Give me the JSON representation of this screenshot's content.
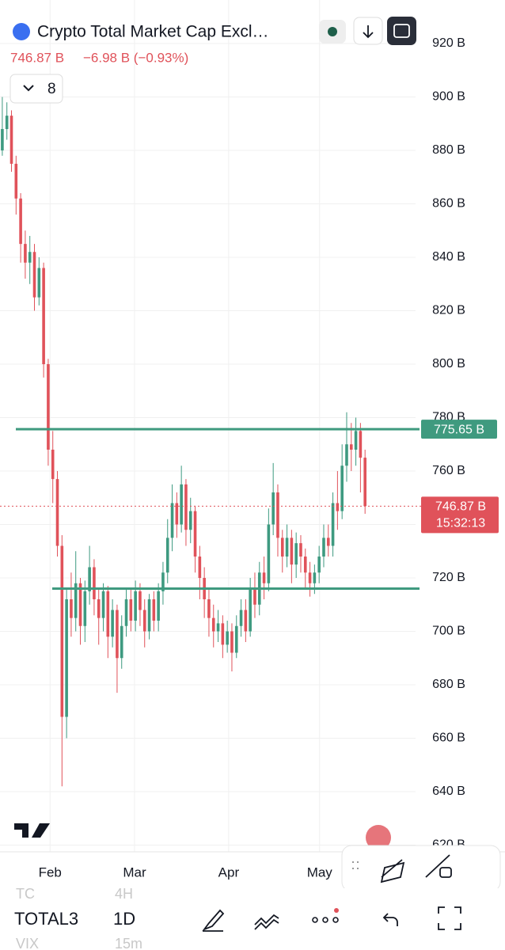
{
  "chart_data": {
    "type": "candlestick",
    "title": "Crypto Total Market Cap Excl…",
    "price": "746.87 B",
    "change": "−6.98 B (−0.93%)",
    "indicator_count": "8",
    "open": [
      880,
      888,
      893,
      875,
      862,
      845,
      838,
      842,
      825,
      836,
      800,
      768,
      757,
      732,
      668,
      712,
      705,
      718,
      702,
      715,
      724,
      712,
      705,
      715,
      698,
      708,
      690,
      702,
      712,
      704,
      715,
      708,
      700,
      712,
      704,
      715,
      722,
      735,
      748,
      740,
      755,
      738,
      745,
      728,
      720,
      712,
      705,
      700,
      703,
      695,
      700,
      692,
      702,
      708,
      700,
      716,
      710,
      722,
      718,
      740,
      752,
      735,
      728,
      735,
      725,
      733,
      728,
      722,
      718,
      722,
      728,
      735,
      732,
      748,
      745,
      762,
      770,
      768,
      775,
      765
    ],
    "high": [
      900,
      898,
      895,
      878,
      864,
      850,
      848,
      845,
      840,
      838,
      802,
      775,
      760,
      736,
      716,
      722,
      730,
      720,
      719,
      732,
      727,
      716,
      718,
      717,
      712,
      710,
      706,
      716,
      716,
      719,
      718,
      712,
      714,
      715,
      718,
      726,
      742,
      755,
      752,
      762,
      757,
      750,
      747,
      732,
      724,
      716,
      710,
      708,
      706,
      704,
      703,
      706,
      712,
      712,
      720,
      722,
      726,
      728,
      746,
      763,
      755,
      738,
      740,
      738,
      737,
      736,
      731,
      726,
      725,
      732,
      740,
      740,
      752,
      760,
      770,
      782,
      778,
      780,
      778,
      768
    ],
    "low": [
      878,
      884,
      872,
      856,
      838,
      832,
      830,
      820,
      822,
      795,
      762,
      748,
      728,
      642,
      660,
      698,
      700,
      695,
      696,
      710,
      706,
      695,
      700,
      690,
      694,
      677,
      686,
      698,
      700,
      700,
      702,
      694,
      697,
      700,
      700,
      710,
      718,
      730,
      735,
      737,
      732,
      733,
      722,
      712,
      705,
      698,
      694,
      696,
      690,
      692,
      685,
      690,
      698,
      696,
      698,
      705,
      706,
      712,
      715,
      736,
      728,
      722,
      724,
      718,
      720,
      722,
      716,
      713,
      714,
      718,
      724,
      728,
      728,
      738,
      742,
      756,
      760,
      762,
      752,
      744
    ],
    "close": [
      888,
      893,
      875,
      862,
      845,
      838,
      842,
      825,
      836,
      800,
      768,
      757,
      732,
      668,
      712,
      705,
      718,
      702,
      715,
      724,
      712,
      705,
      715,
      698,
      708,
      690,
      702,
      712,
      704,
      715,
      708,
      700,
      712,
      704,
      715,
      722,
      735,
      748,
      740,
      755,
      738,
      745,
      728,
      720,
      712,
      705,
      700,
      703,
      695,
      700,
      692,
      702,
      708,
      700,
      716,
      710,
      722,
      718,
      740,
      752,
      735,
      728,
      735,
      725,
      733,
      728,
      722,
      718,
      722,
      728,
      735,
      732,
      748,
      745,
      762,
      770,
      768,
      775,
      765,
      746.87
    ],
    "up_color": "#3e9a80",
    "down_color": "#e0525a",
    "xlim": [
      -0.5,
      90
    ],
    "xticks": [
      {
        "value": 10.4,
        "label": "Feb"
      },
      {
        "value": 28.8,
        "label": "Mar"
      },
      {
        "value": 49.3,
        "label": "Apr"
      },
      {
        "value": 69.1,
        "label": "May"
      }
    ],
    "ylim": [
      620,
      920
    ],
    "yticks": [
      {
        "value": 620,
        "label": "620 B"
      },
      {
        "value": 640,
        "label": "640 B"
      },
      {
        "value": 660,
        "label": "660 B"
      },
      {
        "value": 680,
        "label": "680 B"
      },
      {
        "value": 700,
        "label": "700 B"
      },
      {
        "value": 720,
        "label": "720 B"
      },
      {
        "value": 740,
        "label": "740 B"
      },
      {
        "value": 760,
        "label": "760 B"
      },
      {
        "value": 780,
        "label": "780 B"
      },
      {
        "value": 800,
        "label": "800 B"
      },
      {
        "value": 820,
        "label": "820 B"
      },
      {
        "value": 840,
        "label": "840 B"
      },
      {
        "value": 860,
        "label": "860 B"
      },
      {
        "value": 880,
        "label": "880 B"
      },
      {
        "value": 900,
        "label": "900 B"
      },
      {
        "value": 920,
        "label": "920 B"
      }
    ],
    "grid": true,
    "price_lines": [
      {
        "value": 775.65,
        "label": "775.65 B",
        "color": "#3f9a7f"
      },
      {
        "value": 716,
        "color": "#3f9a7f"
      }
    ],
    "last_price": {
      "value": 746.87,
      "label": "746.87 B",
      "countdown": "15:32:13",
      "color": "#e0525a"
    }
  },
  "toolbar": {
    "symbols": [
      "TC",
      "TOTAL3",
      "VIX"
    ],
    "intervals": [
      "4H",
      "1D",
      "15m"
    ]
  }
}
